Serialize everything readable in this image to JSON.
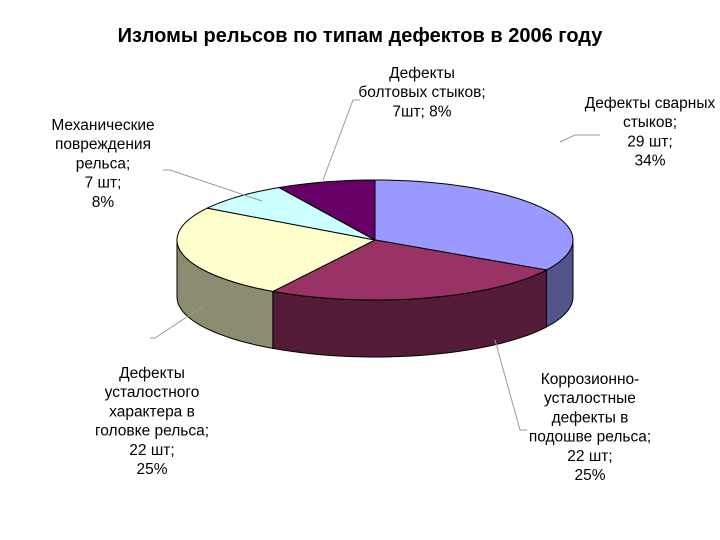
{
  "chart_data": {
    "type": "pie",
    "title": "Изломы рельсов по типам дефектов в 2006 году",
    "slices": [
      {
        "name": "Дефекты сварных стыков",
        "count": 29,
        "percent": 34,
        "color": "#9999ff",
        "label_lines": [
          "Дефекты сварных",
          "стыков;",
          "29 шт;",
          "34%"
        ]
      },
      {
        "name": "Коррозионно-усталостные дефекты в подошве рельса",
        "count": 22,
        "percent": 25,
        "color": "#993366",
        "label_lines": [
          "Коррозионно-",
          "усталостные",
          "дефекты в",
          "подошве рельса;",
          "22 шт;",
          "25%"
        ]
      },
      {
        "name": "Дефекты усталостного характера в головке рельса",
        "count": 22,
        "percent": 25,
        "color": "#ffffcc",
        "label_lines": [
          "Дефекты",
          "усталостного",
          "характера в",
          "головке рельса;",
          "22 шт;",
          "25%"
        ]
      },
      {
        "name": "Механические повреждения рельса",
        "count": 7,
        "percent": 8,
        "color": "#ccffff",
        "label_lines": [
          "Механические",
          "повреждения",
          "рельса;",
          "7 шт;",
          "8%"
        ]
      },
      {
        "name": "Дефекты болтовых стыков",
        "count": 7,
        "percent": 8,
        "color": "#660066",
        "label_lines": [
          "Дефекты",
          "болтовых стыков;",
          "7шт; 8%"
        ]
      }
    ]
  }
}
